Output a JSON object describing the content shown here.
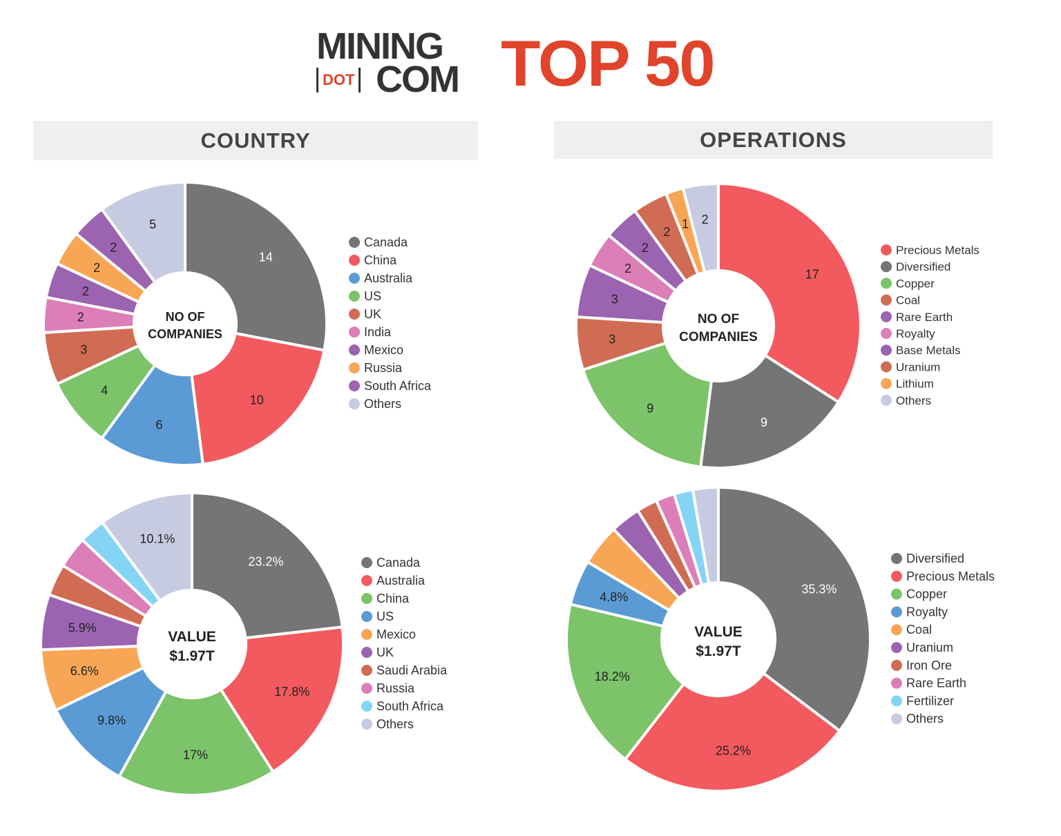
{
  "header": {
    "logo_text": "MINING [DOT] COM",
    "logo_line1": "MINING",
    "logo_dot": "DOT",
    "logo_line2": "COM",
    "title": "TOP 50"
  },
  "sections": {
    "country": "COUNTRY",
    "operations": "OPERATIONS"
  },
  "colors": {
    "gray": "#757575",
    "red": "#f25a5f",
    "blue": "#5b9bd5",
    "green": "#7cc36a",
    "rust": "#d06c54",
    "pink": "#dc7fb9",
    "purple": "#9c64b0",
    "orange": "#f8a656",
    "lightblue": "#84d4f5",
    "lavender": "#c7cbe2",
    "title_red": "#e0442a"
  },
  "chart_data": [
    {
      "type": "pie",
      "section": "COUNTRY",
      "center_label": [
        "NO OF",
        "COMPANIES"
      ],
      "categories": [
        "Canada",
        "China",
        "Australia",
        "US",
        "UK",
        "India",
        "Mexico",
        "Russia",
        "South Africa",
        "Others"
      ],
      "values": [
        14,
        10,
        6,
        4,
        3,
        2,
        2,
        2,
        2,
        5
      ],
      "labels": [
        "14",
        "10",
        "6",
        "4",
        "3",
        "2",
        "2",
        "2",
        "2",
        "5"
      ],
      "colors": [
        "#757575",
        "#f25a5f",
        "#5b9bd5",
        "#7cc36a",
        "#d06c54",
        "#dc7fb9",
        "#9c64b0",
        "#f8a656",
        "#9c64b0",
        "#c7cbe2"
      ],
      "legend_position": "right"
    },
    {
      "type": "pie",
      "section": "OPERATIONS",
      "center_label": [
        "NO OF",
        "COMPANIES"
      ],
      "categories": [
        "Precious Metals",
        "Diversified",
        "Copper",
        "Coal",
        "Rare Earth",
        "Royalty",
        "Base Metals",
        "Uranium",
        "Lithium",
        "Others"
      ],
      "values": [
        17,
        9,
        9,
        3,
        3,
        2,
        2,
        2,
        1,
        2
      ],
      "labels": [
        "17",
        "9",
        "9",
        "3",
        "3",
        "2",
        "2",
        "2",
        "1",
        "2"
      ],
      "colors": [
        "#f25a5f",
        "#757575",
        "#7cc36a",
        "#d06c54",
        "#9c64b0",
        "#dc7fb9",
        "#9c64b0",
        "#d06c54",
        "#f8a656",
        "#c7cbe2"
      ],
      "legend_position": "right"
    },
    {
      "type": "pie",
      "section": "COUNTRY",
      "center_label": [
        "VALUE",
        "$1.97T"
      ],
      "categories": [
        "Canada",
        "Australia",
        "China",
        "US",
        "Mexico",
        "UK",
        "Saudi Arabia",
        "Russia",
        "South Africa",
        "Others"
      ],
      "values": [
        23.2,
        17.8,
        17,
        9.8,
        6.6,
        5.9,
        3.4,
        3.4,
        2.8,
        10.1
      ],
      "labels": [
        "23.2%",
        "17.8%",
        "17%",
        "9.8%",
        "6.6%",
        "5.9%",
        "",
        "",
        "",
        "10.1%"
      ],
      "colors": [
        "#757575",
        "#f25a5f",
        "#7cc36a",
        "#5b9bd5",
        "#f8a656",
        "#9c64b0",
        "#d06c54",
        "#dc7fb9",
        "#84d4f5",
        "#c7cbe2"
      ],
      "legend_position": "right"
    },
    {
      "type": "pie",
      "section": "OPERATIONS",
      "center_label": [
        "VALUE",
        "$1.97T"
      ],
      "categories": [
        "Diversified",
        "Precious Metals",
        "Copper",
        "Royalty",
        "Coal",
        "Uranium",
        "Iron Ore",
        "Rare Earth",
        "Fertilizer",
        "Others"
      ],
      "values": [
        35.3,
        25.2,
        18.2,
        4.8,
        4.4,
        3.2,
        2.2,
        2.0,
        2.0,
        2.7
      ],
      "labels": [
        "35.3%",
        "25.2%",
        "18.2%",
        "4.8%",
        "",
        "",
        "",
        "",
        "",
        ""
      ],
      "colors": [
        "#757575",
        "#f25a5f",
        "#7cc36a",
        "#5b9bd5",
        "#f8a656",
        "#9c64b0",
        "#d06c54",
        "#dc7fb9",
        "#84d4f5",
        "#c7cbe2"
      ],
      "legend_position": "right"
    }
  ]
}
